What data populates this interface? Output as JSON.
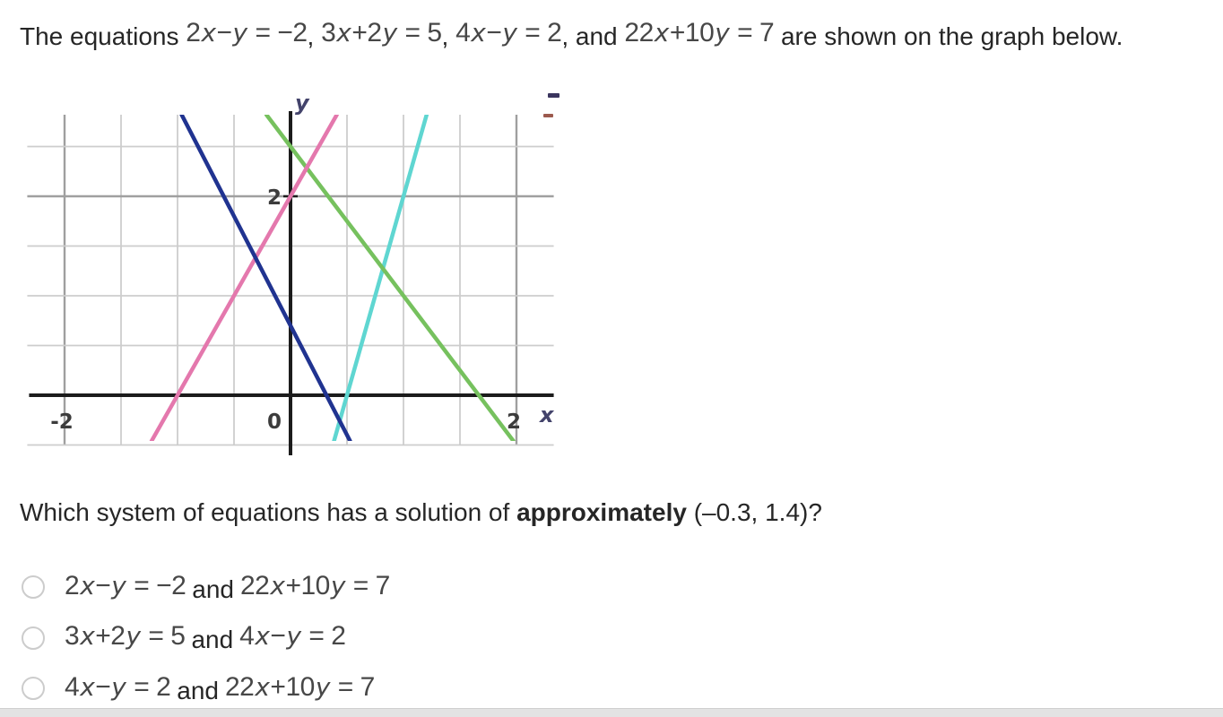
{
  "title": {
    "parts": [
      {
        "eq": false,
        "text": "The equations "
      },
      {
        "eq": true,
        "text": "2x−y = −2"
      },
      {
        "eq": false,
        "text": ", "
      },
      {
        "eq": true,
        "text": "3x+2y = 5"
      },
      {
        "eq": false,
        "text": ", "
      },
      {
        "eq": true,
        "text": "4x−y = 2"
      },
      {
        "eq": false,
        "text": ", and "
      },
      {
        "eq": true,
        "text": "22x+10y = 7"
      },
      {
        "eq": false,
        "text": " are shown on the graph below."
      }
    ]
  },
  "question": {
    "pre": "Which system of equations has a solution of ",
    "bold": "approximately",
    "post": " (–0.3, 1.4)?"
  },
  "options": [
    {
      "eq1": "2x−y = −2",
      "conj": "and",
      "eq2": "22x+10y = 7"
    },
    {
      "eq1": "3x+2y = 5",
      "conj": "and",
      "eq2": "4x−y = 2"
    },
    {
      "eq1": "4x−y = 2",
      "conj": "and",
      "eq2": "22x+10y = 7"
    }
  ],
  "chart_data": {
    "type": "line",
    "xlabel": "x",
    "ylabel": "y",
    "xlim": [
      -2.33,
      2.33
    ],
    "ylim": [
      -0.46,
      2.82
    ],
    "grid_step": 0.5,
    "grid_on": true,
    "major_gridlines_x": [
      -2,
      2
    ],
    "major_gridlines_y": [
      2
    ],
    "x_ticks": [
      {
        "value": -2,
        "label": "-2"
      },
      {
        "value": 0,
        "label": "0"
      },
      {
        "value": 2,
        "label": "2"
      }
    ],
    "y_ticks": [
      {
        "value": 2,
        "label": "2"
      }
    ],
    "series": [
      {
        "name": "4x−y = 2",
        "slope": 4,
        "intercept": -2,
        "color": "#5fd6d1"
      },
      {
        "name": "3x+2y = 5",
        "slope": -1.5,
        "intercept": 2.5,
        "color": "#76c15e"
      },
      {
        "name": "2x−y = −2",
        "slope": 2,
        "intercept": 2,
        "color": "#e478ad"
      },
      {
        "name": "22x+10y = 7",
        "slope": -2.2,
        "intercept": 0.7,
        "color": "#203390"
      }
    ],
    "colors": {
      "grid_minor": "#cdcdcd",
      "grid_major": "#9f9f9f",
      "axis": "#1c1c1c"
    },
    "artifacts": [
      {
        "name": "navy-dash",
        "color": "#3a355e"
      },
      {
        "name": "red-dash",
        "color": "#9c5a4e"
      }
    ]
  }
}
